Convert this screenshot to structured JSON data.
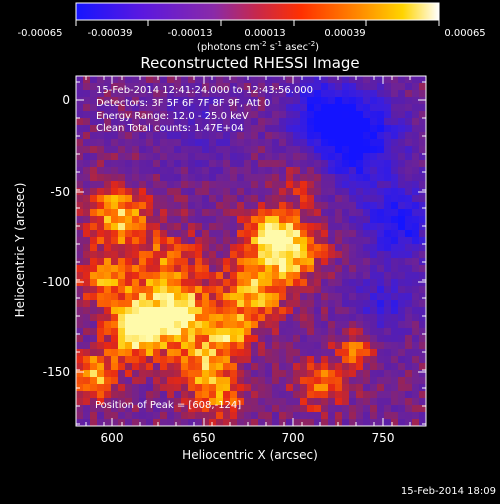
{
  "colorbar": {
    "ticks": [
      "-0.00065",
      "-0.00039",
      "-0.00013",
      "0.00013",
      "0.00039",
      "0.00065"
    ],
    "unit_prefix": "(photons cm",
    "unit_sup1": "-2",
    "unit_mid": " s",
    "unit_sup2": "-1",
    "unit_mid2": " asec",
    "unit_sup3": "-2",
    "unit_suffix": ")",
    "colors": [
      "#1515ff",
      "#5a18e0",
      "#8a2aa8",
      "#c8284a",
      "#ff3000",
      "#ff8a00",
      "#ffd400",
      "#ffffff"
    ]
  },
  "plot": {
    "title": "Reconstructed RHESSI Image",
    "info": [
      "15-Feb-2014 12:41:24.000 to 12:43:56.000",
      "Detectors: 3F 5F 6F 7F 8F 9F, Att 0",
      "Energy Range: 12.0 - 25.0 keV",
      "Clean      Total counts: 1.47E+04"
    ],
    "peak": "Position of Peak = [608,-124]",
    "xlabel": "Heliocentric X (arcsec)",
    "ylabel": "Heliocentric Y (arcsec)",
    "xticks": [
      "600",
      "650",
      "700",
      "750"
    ],
    "yticks": [
      "0",
      "-50",
      "-100",
      "-150"
    ]
  },
  "footer": {
    "timestamp": "15-Feb-2014 18:09"
  }
}
